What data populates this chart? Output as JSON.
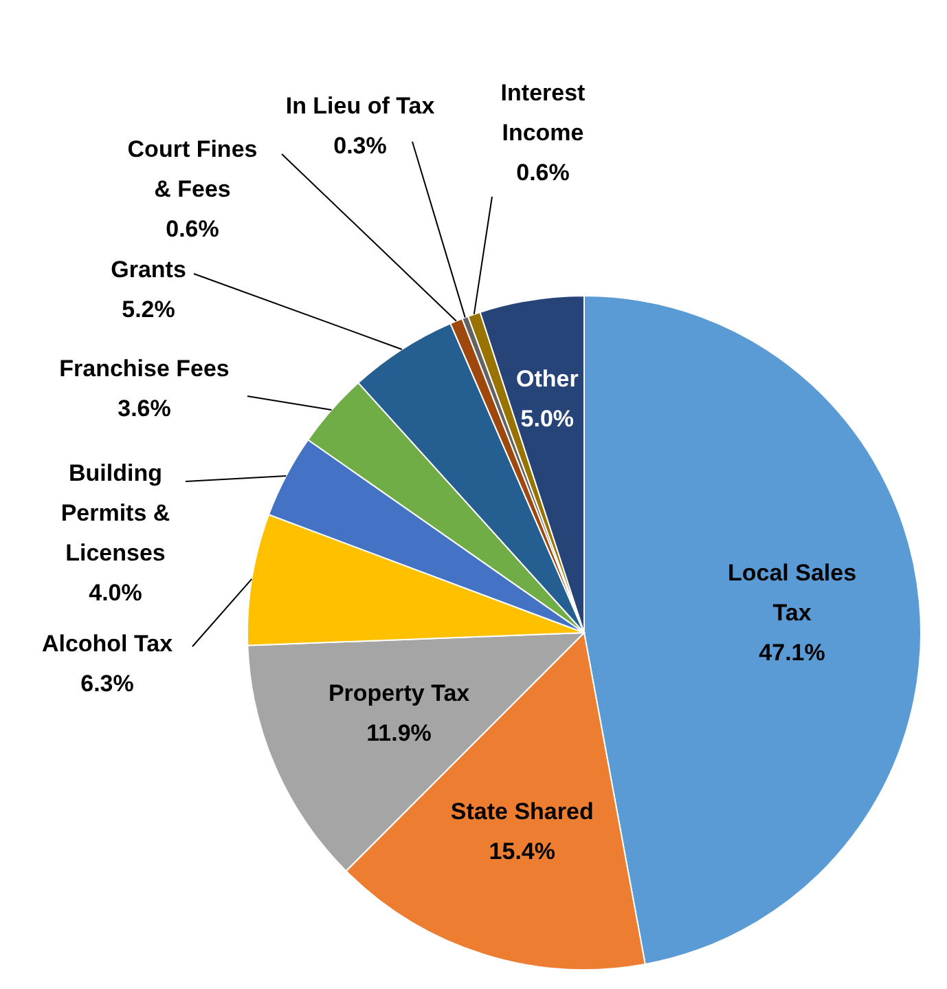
{
  "chart_data": {
    "type": "pie",
    "categories": [
      "Local Sales Tax",
      "State Shared",
      "Property Tax",
      "Alcohol Tax",
      "Building Permits & Licenses",
      "Franchise Fees",
      "Grants",
      "Court Fines & Fees",
      "In Lieu of Tax",
      "Interest Income",
      "Other"
    ],
    "values": [
      47.1,
      15.4,
      11.9,
      6.3,
      4.0,
      3.6,
      5.2,
      0.6,
      0.3,
      0.6,
      5.0
    ],
    "value_labels": [
      "47.1%",
      "15.4%",
      "11.9%",
      "6.3%",
      "4.0%",
      "3.6%",
      "5.2%",
      "0.6%",
      "0.3%",
      "0.6%",
      "5.0%"
    ],
    "colors": [
      "#5b9bd5",
      "#ed7d31",
      "#a5a5a5",
      "#ffc000",
      "#4472c4",
      "#70ad47",
      "#255e91",
      "#9e480e",
      "#636363",
      "#997300",
      "#264478"
    ]
  }
}
